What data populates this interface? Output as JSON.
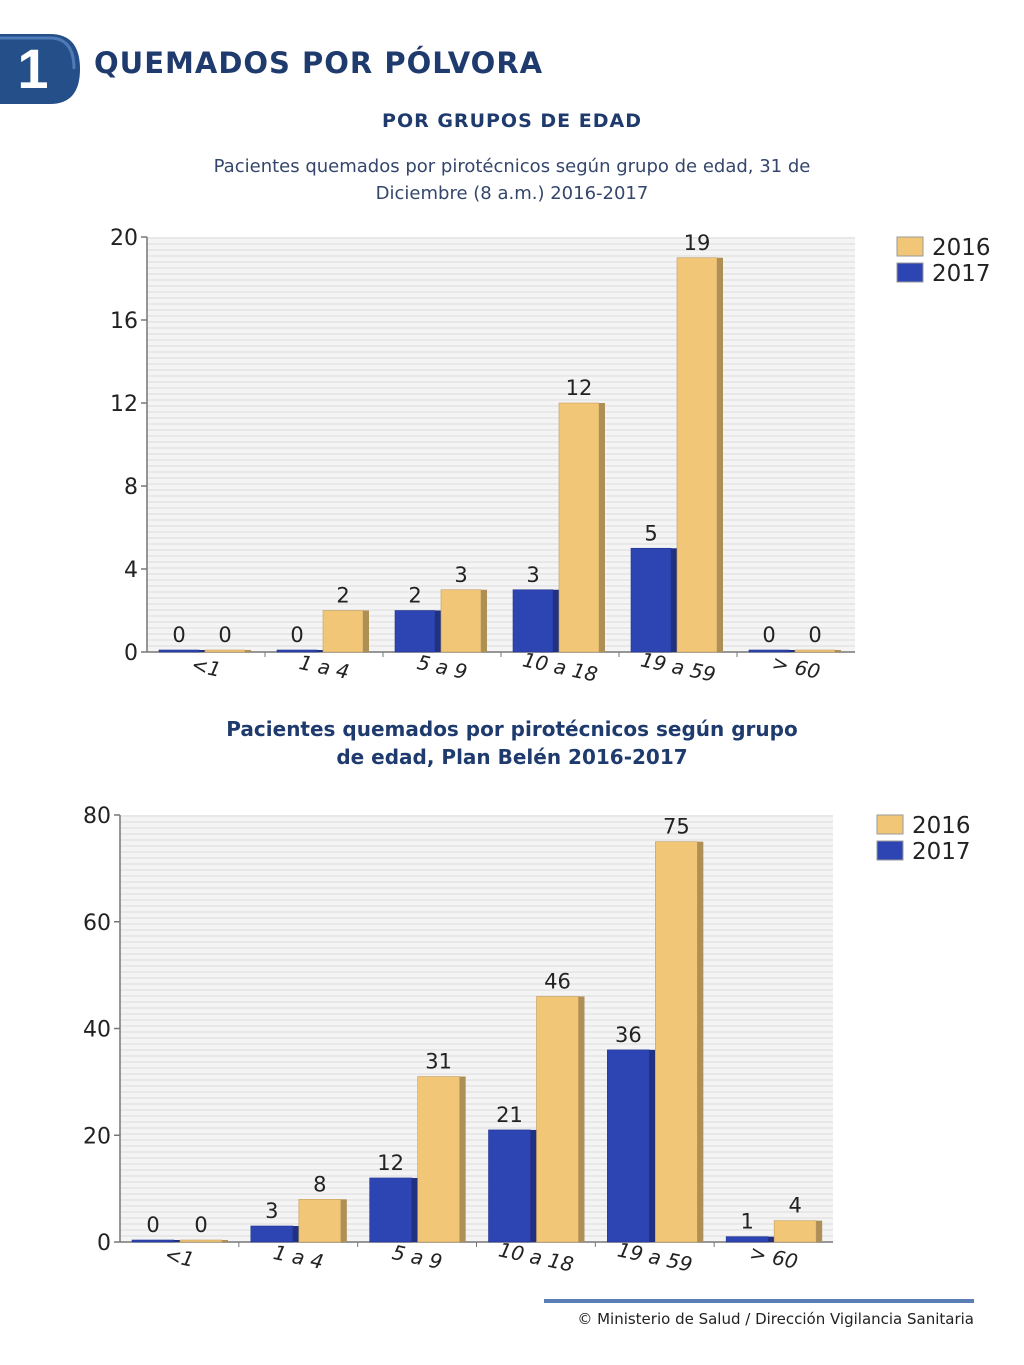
{
  "header": {
    "badge_number": "1",
    "title": "QUEMADOS POR PÓLVORA",
    "subtitle": "POR GRUPOS DE EDAD"
  },
  "colors": {
    "series_2016": "#f2c677",
    "series_2017": "#2d44b3",
    "title_blue": "#1f3b6e",
    "badge_blue": "#244f88"
  },
  "chart_data": [
    {
      "type": "bar",
      "title": "Pacientes quemados por pirotécnicos según grupo de edad, 31 de Diciembre (8 a.m.) 2016-2017",
      "categories": [
        "<1",
        "1 a 4",
        "5 a 9",
        "10 a 18",
        "19 a 59",
        "> 60"
      ],
      "series": [
        {
          "name": "2017",
          "values": [
            0,
            0,
            2,
            3,
            5,
            0
          ]
        },
        {
          "name": "2016",
          "values": [
            0,
            2,
            3,
            12,
            19,
            0
          ]
        }
      ],
      "ylim": [
        0,
        20
      ],
      "yticks": [
        0,
        4,
        8,
        12,
        16,
        20
      ],
      "legend": [
        "2016",
        "2017"
      ],
      "legend_position": "top-right",
      "grid": true
    },
    {
      "type": "bar",
      "title": "Pacientes quemados por pirotécnicos según grupo de edad, Plan Belén 2016-2017",
      "categories": [
        "<1",
        "1 a 4",
        "5 a 9",
        "10 a 18",
        "19 a 59",
        "> 60"
      ],
      "series": [
        {
          "name": "2017",
          "values": [
            0,
            3,
            12,
            21,
            36,
            1
          ]
        },
        {
          "name": "2016",
          "values": [
            0,
            8,
            31,
            46,
            75,
            4
          ]
        }
      ],
      "ylim": [
        0,
        80
      ],
      "yticks": [
        0,
        20,
        40,
        60,
        80
      ],
      "legend": [
        "2016",
        "2017"
      ],
      "legend_position": "top-right",
      "grid": true
    }
  ],
  "captions": {
    "chart1_line1": "Pacientes quemados por pirotécnicos según grupo de edad, 31 de",
    "chart1_line2": "Diciembre (8 a.m.) 2016-2017",
    "chart2_line1": "Pacientes quemados por pirotécnicos según grupo",
    "chart2_line2": "de edad, Plan Belén 2016-2017"
  },
  "footer": {
    "text": "© Ministerio de Salud / Dirección Vigilancia Sanitaria"
  }
}
